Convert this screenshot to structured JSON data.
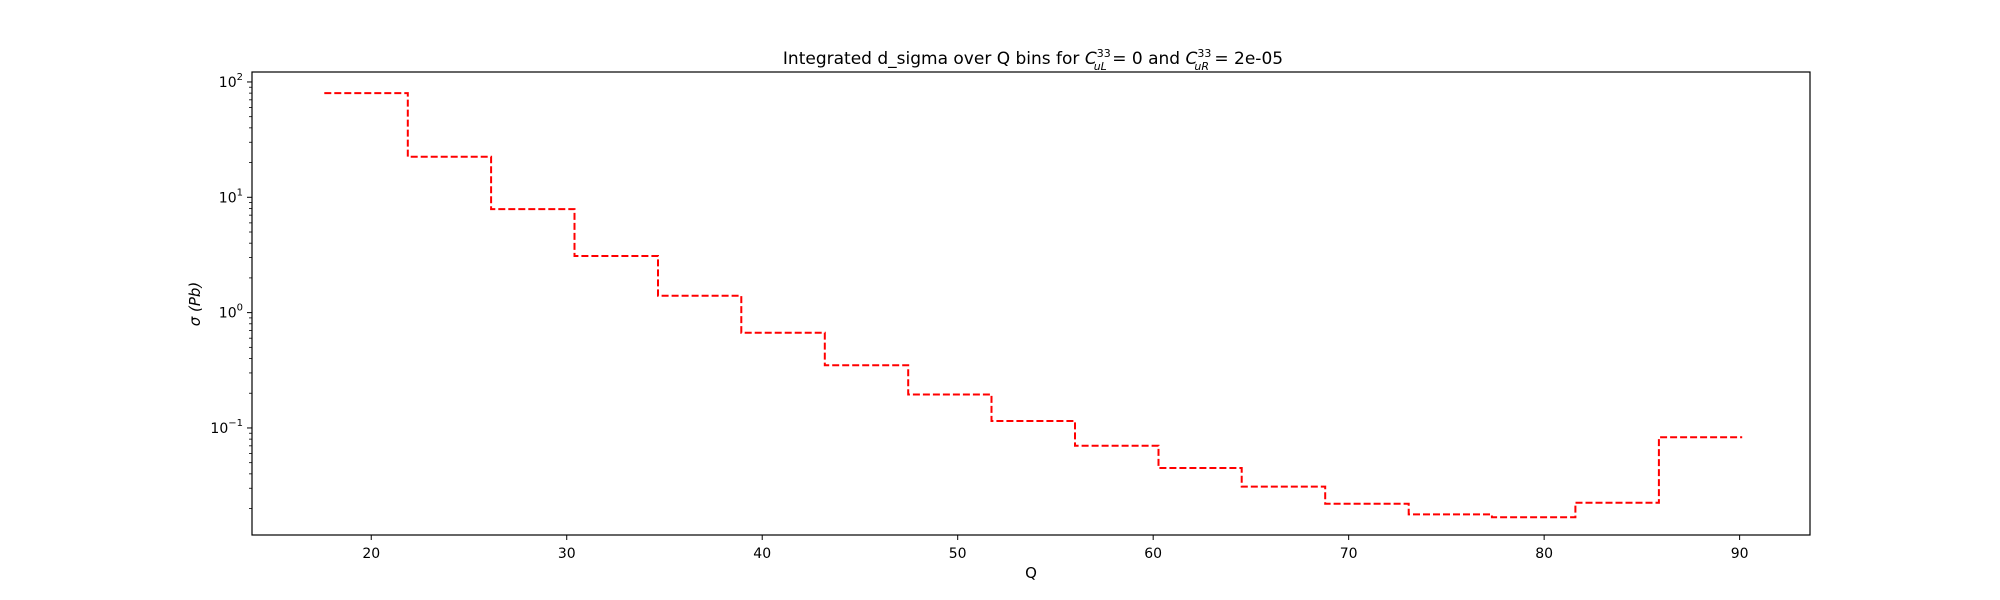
{
  "chart_data": {
    "type": "line",
    "title_text": "Integrated d_sigma over Q bins for ",
    "title_c1_base": "C",
    "title_c1_sup": "33",
    "title_c1_sub": "uL",
    "title_c1_value": " = 0 and ",
    "title_c2_base": "C",
    "title_c2_sup": "33",
    "title_c2_sub": "uR",
    "title_c2_value": " = 2e-05",
    "xlabel": "Q",
    "ylabel_sigma": "σ",
    "ylabel_unit": " (Pb)",
    "xlim": [
      13.9,
      93.6
    ],
    "ylim": [
      0.0118,
      122
    ],
    "yscale": "log",
    "grid": false,
    "x_ticks": [
      20,
      30,
      40,
      50,
      60,
      70,
      80,
      90
    ],
    "y_ticks": [
      {
        "value": 100,
        "base": "10",
        "exp": "2"
      },
      {
        "value": 10,
        "base": "10",
        "exp": "1"
      },
      {
        "value": 1,
        "base": "10",
        "exp": "0"
      },
      {
        "value": 0.1,
        "base": "10",
        "exp": "−1"
      }
    ],
    "series": [
      {
        "color": "#ff0000",
        "style": "dashed",
        "bin_edges": [
          17.6,
          21.87,
          26.13,
          30.4,
          34.67,
          38.93,
          43.2,
          47.47,
          51.73,
          56.0,
          60.27,
          64.53,
          68.8,
          73.07,
          77.33,
          81.6,
          85.87,
          90.13
        ],
        "values": [
          80,
          22.5,
          7.9,
          3.1,
          1.4,
          0.67,
          0.35,
          0.195,
          0.115,
          0.07,
          0.045,
          0.031,
          0.022,
          0.0178,
          0.0168,
          0.0225,
          0.083
        ]
      }
    ]
  }
}
